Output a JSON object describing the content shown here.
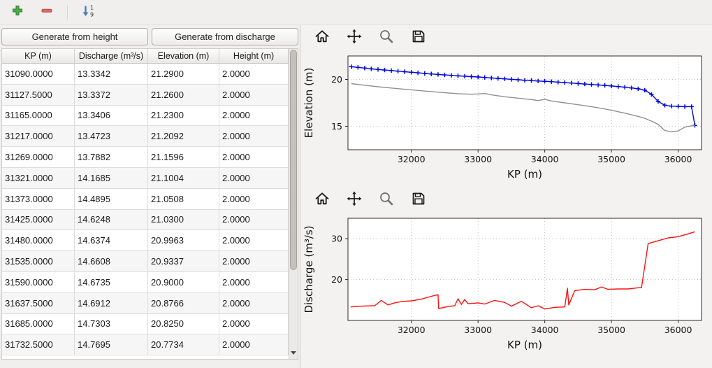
{
  "toolbar": {
    "icons": [
      "add-icon",
      "remove-icon",
      "sort-numeric-icon"
    ]
  },
  "buttons": {
    "generate_height": "Generate from height",
    "generate_discharge": "Generate from discharge"
  },
  "table": {
    "columns": [
      "KP (m)",
      "Discharge (m³/s)",
      "Elevation (m)",
      "Height (m)"
    ],
    "rows": [
      [
        "31090.0000",
        "13.3342",
        "21.2900",
        "2.0000"
      ],
      [
        "31127.5000",
        "13.3372",
        "21.2600",
        "2.0000"
      ],
      [
        "31165.0000",
        "13.3406",
        "21.2300",
        "2.0000"
      ],
      [
        "31217.0000",
        "13.4723",
        "21.2092",
        "2.0000"
      ],
      [
        "31269.0000",
        "13.7882",
        "21.1596",
        "2.0000"
      ],
      [
        "31321.0000",
        "14.1685",
        "21.1004",
        "2.0000"
      ],
      [
        "31373.0000",
        "14.4895",
        "21.0508",
        "2.0000"
      ],
      [
        "31425.0000",
        "14.6248",
        "21.0300",
        "2.0000"
      ],
      [
        "31480.0000",
        "14.6374",
        "20.9963",
        "2.0000"
      ],
      [
        "31535.0000",
        "14.6608",
        "20.9337",
        "2.0000"
      ],
      [
        "31590.0000",
        "14.6735",
        "20.9000",
        "2.0000"
      ],
      [
        "31637.5000",
        "14.6912",
        "20.8766",
        "2.0000"
      ],
      [
        "31685.0000",
        "14.7303",
        "20.8250",
        "2.0000"
      ],
      [
        "31732.5000",
        "14.7695",
        "20.7734",
        "2.0000"
      ]
    ]
  },
  "plot_toolbar": {
    "icons": [
      "home-icon",
      "pan-icon",
      "zoom-icon",
      "save-icon"
    ]
  },
  "chart_data": [
    {
      "type": "line",
      "title": "",
      "xlabel": "KP (m)",
      "ylabel": "Elevation (m)",
      "xlim": [
        31050,
        36350
      ],
      "ylim": [
        12.5,
        22.5
      ],
      "xticks": [
        32000,
        33000,
        34000,
        35000,
        36000
      ],
      "yticks": [
        15,
        20
      ],
      "grid": true,
      "legend": "none",
      "series": [
        {
          "name": "water-elevation",
          "color": "#0008dd",
          "marker": "plus",
          "x": [
            31100,
            31200,
            31300,
            31400,
            31500,
            31600,
            31700,
            31800,
            31900,
            32000,
            32100,
            32200,
            32300,
            32400,
            32500,
            32600,
            32700,
            32800,
            32900,
            33000,
            33100,
            33200,
            33300,
            33400,
            33500,
            33600,
            33700,
            33800,
            33900,
            34000,
            34100,
            34200,
            34300,
            34400,
            34500,
            34600,
            34700,
            34800,
            34900,
            35000,
            35100,
            35200,
            35300,
            35400,
            35500,
            35600,
            35700,
            35800,
            35900,
            36000,
            36100,
            36200,
            36250
          ],
          "y": [
            21.35,
            21.28,
            21.21,
            21.13,
            21.06,
            21.0,
            20.94,
            20.88,
            20.82,
            20.76,
            20.7,
            20.64,
            20.58,
            20.53,
            20.48,
            20.43,
            20.38,
            20.34,
            20.3,
            20.26,
            20.21,
            20.16,
            20.11,
            20.06,
            20.01,
            19.96,
            19.91,
            19.87,
            19.83,
            19.8,
            19.76,
            19.71,
            19.66,
            19.61,
            19.56,
            19.51,
            19.46,
            19.41,
            19.36,
            19.3,
            19.24,
            19.17,
            19.09,
            19.0,
            18.85,
            18.4,
            17.65,
            17.25,
            17.15,
            17.12,
            17.1,
            17.1,
            15.1
          ]
        },
        {
          "name": "bed-elevation",
          "color": "#919191",
          "marker": "none",
          "x": [
            31100,
            31300,
            31500,
            31700,
            31900,
            32100,
            32300,
            32500,
            32700,
            32900,
            33000,
            33100,
            33200,
            33400,
            33600,
            33800,
            33900,
            34000,
            34100,
            34300,
            34500,
            34700,
            34900,
            35000,
            35200,
            35400,
            35500,
            35600,
            35700,
            35800,
            35900,
            36000,
            36100,
            36200,
            36250
          ],
          "y": [
            19.55,
            19.38,
            19.22,
            19.08,
            18.95,
            18.82,
            18.7,
            18.58,
            18.48,
            18.42,
            18.45,
            18.5,
            18.35,
            18.15,
            18.0,
            17.85,
            17.75,
            17.88,
            17.7,
            17.5,
            17.3,
            17.1,
            16.85,
            16.7,
            16.4,
            16.05,
            15.85,
            15.55,
            15.2,
            14.55,
            14.4,
            14.5,
            14.9,
            15.05,
            15.05
          ]
        }
      ]
    },
    {
      "type": "line",
      "title": "",
      "xlabel": "KP (m)",
      "ylabel": "Discharge (m³/s)",
      "xlim": [
        31050,
        36350
      ],
      "ylim": [
        10,
        35
      ],
      "xticks": [
        32000,
        33000,
        34000,
        35000,
        36000
      ],
      "yticks": [
        20,
        30
      ],
      "grid": true,
      "legend": "none",
      "series": [
        {
          "name": "discharge",
          "color": "#ff1010",
          "marker": "none",
          "x": [
            31090,
            31250,
            31450,
            31550,
            31650,
            31750,
            31850,
            32000,
            32150,
            32300,
            32400,
            32410,
            32550,
            32650,
            32700,
            32750,
            32800,
            32850,
            33000,
            33100,
            33250,
            33400,
            33500,
            33650,
            33800,
            33900,
            34000,
            34150,
            34300,
            34340,
            34360,
            34450,
            34600,
            34750,
            34850,
            34950,
            35100,
            35250,
            35400,
            35450,
            35550,
            35700,
            35850,
            36000,
            36150,
            36250
          ],
          "y": [
            13.3,
            13.5,
            13.6,
            14.9,
            13.8,
            14.3,
            14.6,
            14.8,
            15.2,
            15.9,
            16.3,
            12.9,
            13.4,
            13.6,
            15.3,
            13.9,
            15.1,
            14.1,
            14.3,
            14.0,
            14.9,
            14.4,
            13.5,
            14.7,
            13.1,
            13.6,
            12.8,
            13.2,
            13.3,
            17.9,
            13.8,
            17.3,
            17.6,
            17.5,
            18.2,
            17.6,
            17.7,
            17.7,
            18.0,
            18.0,
            28.8,
            29.5,
            30.2,
            30.5,
            31.2,
            31.7
          ]
        }
      ]
    }
  ]
}
